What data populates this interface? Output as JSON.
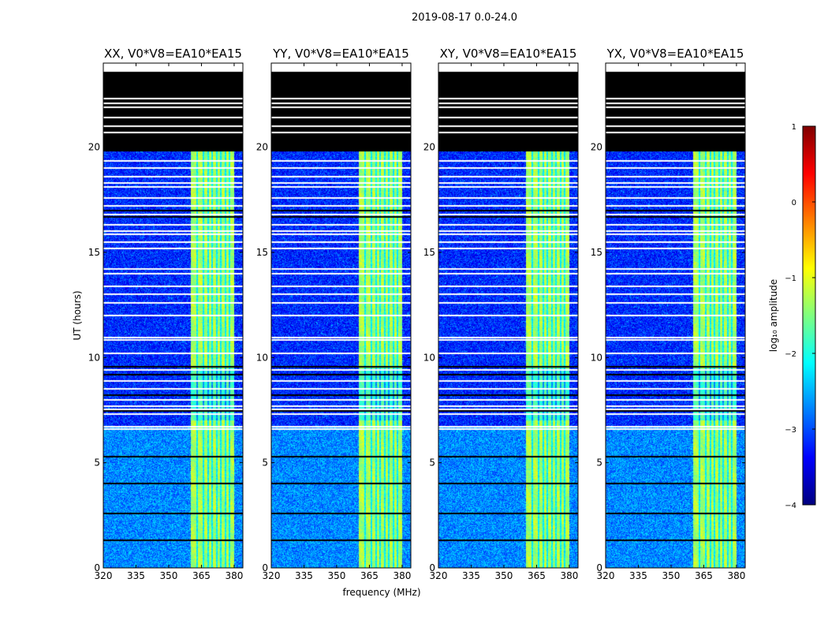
{
  "suptitle": "2019-08-17 0.0-24.0",
  "chart_data": {
    "type": "heatmap",
    "title": "2019-08-17 0.0-24.0",
    "xlabel": "frequency (MHz)",
    "ylabel": "UT (hours)",
    "xlim": [
      320,
      384
    ],
    "ylim": [
      0,
      24
    ],
    "xticks": [
      "320",
      "335",
      "350",
      "365",
      "380"
    ],
    "yticks": [
      "0",
      "5",
      "10",
      "15",
      "20"
    ],
    "panels": [
      {
        "title": "XX, V0*V8=EA10*EA15"
      },
      {
        "title": "YY, V0*V8=EA10*EA15"
      },
      {
        "title": "XY, V0*V8=EA10*EA15"
      },
      {
        "title": "YX, V0*V8=EA10*EA15"
      }
    ],
    "colorbar": {
      "label": "log₁₀ amplitude",
      "range": [
        -4,
        1
      ],
      "ticks": [
        "1",
        "0",
        "−1",
        "−2",
        "−3",
        "−4"
      ],
      "colors": [
        "#00007f",
        "#0000ff",
        "#007fff",
        "#00ffff",
        "#7fff7f",
        "#ffff00",
        "#ff7f00",
        "#ff0000",
        "#7f0000"
      ]
    },
    "no_data_above_hours": 19.8,
    "rfi_band_mhz": [
      360,
      380
    ],
    "rfi_channels_mhz": [
      363,
      366,
      368,
      370,
      372,
      374,
      376,
      378
    ],
    "bright_period_hours": [
      0,
      6.7
    ],
    "noise_level_low": -2.7,
    "noise_level_high": -3.2,
    "rfi_level": -1.3,
    "flagged_white_hours": [
      6.6,
      6.7,
      7.3,
      7.55,
      7.7,
      8.0,
      8.5,
      8.9,
      9.4,
      10.2,
      10.85,
      10.95,
      12.0,
      12.6,
      13.0,
      13.4,
      14.0,
      14.2,
      15.2,
      15.5,
      15.85,
      16.0,
      16.3,
      16.8,
      17.2,
      17.6,
      18.1,
      18.3,
      18.6,
      19.0,
      19.35,
      20.7,
      21.0,
      21.4,
      21.9,
      22.1,
      22.3
    ],
    "flagged_black_hours": [
      1.3,
      2.6,
      4.0,
      5.3,
      7.45,
      8.2,
      9.2,
      9.55,
      16.7,
      17.0
    ]
  }
}
